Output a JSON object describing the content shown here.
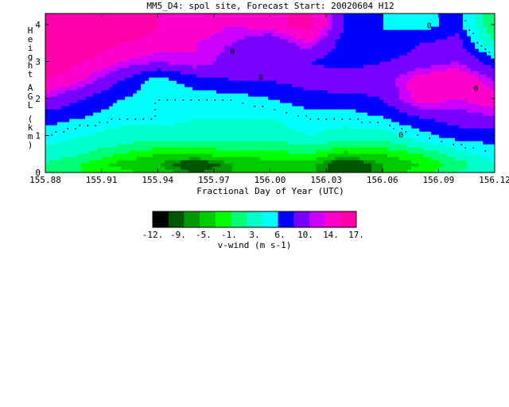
{
  "chart_data": {
    "type": "heatmap",
    "title": "MM5_D4: spol site,  Forecast Start: 20020604 H12",
    "xlabel": "Fractional Day of Year (UTC)",
    "ylabel": "Height AGL (km)",
    "xlim": [
      155.88,
      156.12
    ],
    "ylim": [
      0,
      4.3
    ],
    "x_ticks": [
      "155.88",
      "155.91",
      "155.94",
      "155.97",
      "156.00",
      "156.03",
      "156.06",
      "156.09",
      "156.12"
    ],
    "y_ticks": [
      "0",
      "1",
      "2",
      "3",
      "4"
    ],
    "x": [
      155.88,
      155.9,
      155.92,
      155.94,
      155.96,
      155.98,
      156.0,
      156.02,
      156.04,
      156.06,
      156.08,
      156.1,
      156.12
    ],
    "y": [
      0,
      0.25,
      0.5,
      0.75,
      1.0,
      1.5,
      2.0,
      2.5,
      3.0,
      3.5,
      4.0,
      4.3
    ],
    "z": [
      [
        -3,
        -5,
        -6,
        -8,
        -10,
        -9,
        -8,
        -8,
        -12,
        -9,
        -6,
        -3,
        -1
      ],
      [
        -3,
        -5,
        -8,
        -9,
        -12,
        -9,
        -8,
        -8,
        -12,
        -9,
        -7,
        -4,
        -1
      ],
      [
        -2,
        -3,
        -5,
        -7,
        -7,
        -6,
        -6,
        -5,
        -8,
        -7,
        -5,
        -2,
        0
      ],
      [
        -1,
        -2,
        -3,
        -4,
        -4,
        -4,
        -4,
        -3,
        -4,
        -4,
        -2,
        0,
        1
      ],
      [
        0,
        -1,
        -2,
        -2,
        -2,
        -2,
        -2,
        -1,
        -2,
        -2,
        0,
        2,
        2
      ],
      [
        2,
        1,
        0,
        0,
        -1,
        -1,
        -1,
        0,
        0,
        1,
        3,
        4,
        5
      ],
      [
        5,
        3,
        1,
        0,
        0,
        0,
        1,
        2,
        2,
        3,
        7,
        6,
        7
      ],
      [
        8,
        6,
        3,
        0,
        2,
        3,
        3,
        4,
        5,
        4,
        7,
        8,
        5
      ],
      [
        10,
        8,
        6,
        5,
        6,
        4,
        3,
        3,
        2,
        3,
        4,
        5,
        2
      ],
      [
        14,
        10,
        8,
        7,
        6,
        5,
        3,
        6,
        2,
        1,
        3,
        4,
        -3
      ],
      [
        16,
        14,
        11,
        8,
        7,
        6,
        7,
        9,
        3,
        1,
        0,
        2,
        -5
      ],
      [
        16,
        14,
        11,
        8,
        7,
        6,
        7,
        9,
        3,
        1,
        0,
        2,
        -5
      ]
    ],
    "contour_label": "0",
    "colorbar": {
      "label": "v-wind (m s-1)",
      "tick_labels": [
        "-12.",
        "-9.",
        "-5.",
        "-1.",
        "3.",
        "6.",
        "10.",
        "14.",
        "17."
      ],
      "levels": [
        -14,
        -12,
        -10,
        -9,
        -7,
        -5,
        -3,
        -1,
        1,
        3,
        5,
        6,
        8,
        10,
        12,
        14,
        16,
        17
      ],
      "colors": [
        "#000000",
        "#005500",
        "#009900",
        "#00cc00",
        "#00ff00",
        "#00ff77",
        "#00ffcc",
        "#00ffff",
        "#0000ff",
        "#7700ff",
        "#cc00ff",
        "#ff00cc",
        "#ff00aa"
      ]
    }
  }
}
